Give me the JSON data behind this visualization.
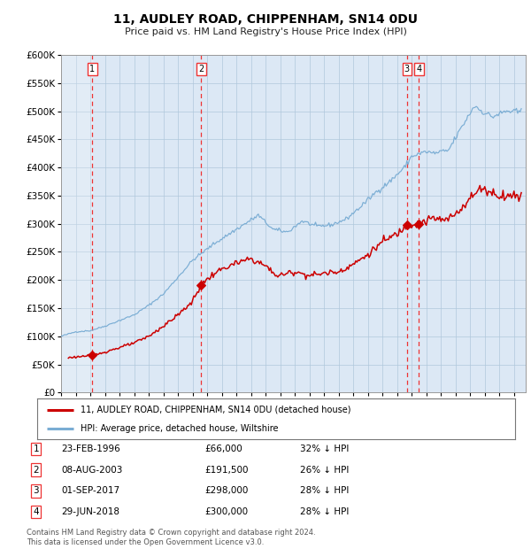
{
  "title_line1": "11, AUDLEY ROAD, CHIPPENHAM, SN14 0DU",
  "title_line2": "Price paid vs. HM Land Registry's House Price Index (HPI)",
  "purchases": [
    {
      "num": 1,
      "date_str": "23-FEB-1996",
      "date_x": 1996.14,
      "price": 66000,
      "pct": "32% ↓ HPI"
    },
    {
      "num": 2,
      "date_str": "08-AUG-2003",
      "date_x": 2003.6,
      "price": 191500,
      "pct": "26% ↓ HPI"
    },
    {
      "num": 3,
      "date_str": "01-SEP-2017",
      "date_x": 2017.67,
      "price": 298000,
      "pct": "28% ↓ HPI"
    },
    {
      "num": 4,
      "date_str": "29-JUN-2018",
      "date_x": 2018.49,
      "price": 300000,
      "pct": "28% ↓ HPI"
    }
  ],
  "legend_label_red": "11, AUDLEY ROAD, CHIPPENHAM, SN14 0DU (detached house)",
  "legend_label_blue": "HPI: Average price, detached house, Wiltshire",
  "footer_line1": "Contains HM Land Registry data © Crown copyright and database right 2024.",
  "footer_line2": "This data is licensed under the Open Government Licence v3.0.",
  "hpi_color": "#7aadd4",
  "price_color": "#cc0000",
  "marker_color": "#cc0000",
  "vline_color": "#ee3333",
  "bg_chart_color": "#dce8f5",
  "bg_outer_color": "#ffffff",
  "grid_color": "#b0c8dc",
  "ylim": [
    0,
    600000
  ],
  "xlim_start": 1994.0,
  "xlim_end": 2025.8,
  "hpi_waypoints": [
    [
      1994.0,
      100000
    ],
    [
      1995.0,
      108000
    ],
    [
      1996.0,
      110000
    ],
    [
      1997.0,
      118000
    ],
    [
      1998.0,
      128000
    ],
    [
      1999.0,
      138000
    ],
    [
      2000.0,
      155000
    ],
    [
      2001.0,
      175000
    ],
    [
      2002.0,
      205000
    ],
    [
      2003.0,
      235000
    ],
    [
      2004.5,
      265000
    ],
    [
      2006.0,
      290000
    ],
    [
      2007.5,
      315000
    ],
    [
      2008.5,
      290000
    ],
    [
      2009.5,
      285000
    ],
    [
      2010.5,
      305000
    ],
    [
      2011.5,
      295000
    ],
    [
      2012.5,
      298000
    ],
    [
      2013.5,
      308000
    ],
    [
      2014.5,
      330000
    ],
    [
      2015.5,
      355000
    ],
    [
      2016.5,
      375000
    ],
    [
      2017.5,
      400000
    ],
    [
      2018.0,
      420000
    ],
    [
      2019.0,
      428000
    ],
    [
      2019.5,
      425000
    ],
    [
      2020.5,
      430000
    ],
    [
      2021.5,
      475000
    ],
    [
      2022.3,
      510000
    ],
    [
      2022.8,
      500000
    ],
    [
      2023.5,
      490000
    ],
    [
      2024.5,
      500000
    ],
    [
      2025.5,
      498000
    ]
  ],
  "price_waypoints": [
    [
      1994.5,
      62000
    ],
    [
      1996.14,
      66000
    ],
    [
      1997.0,
      72000
    ],
    [
      1998.0,
      80000
    ],
    [
      1999.0,
      88000
    ],
    [
      2000.0,
      100000
    ],
    [
      2001.0,
      118000
    ],
    [
      2002.0,
      138000
    ],
    [
      2003.0,
      162000
    ],
    [
      2003.6,
      191500
    ],
    [
      2004.5,
      212000
    ],
    [
      2005.5,
      225000
    ],
    [
      2007.0,
      238000
    ],
    [
      2008.0,
      225000
    ],
    [
      2008.8,
      207000
    ],
    [
      2010.0,
      215000
    ],
    [
      2011.0,
      208000
    ],
    [
      2012.0,
      212000
    ],
    [
      2013.0,
      215000
    ],
    [
      2014.0,
      228000
    ],
    [
      2015.0,
      245000
    ],
    [
      2016.0,
      268000
    ],
    [
      2017.0,
      282000
    ],
    [
      2017.67,
      298000
    ],
    [
      2018.49,
      300000
    ],
    [
      2019.5,
      310000
    ],
    [
      2020.3,
      305000
    ],
    [
      2021.0,
      318000
    ],
    [
      2022.0,
      345000
    ],
    [
      2022.8,
      365000
    ],
    [
      2023.2,
      358000
    ],
    [
      2024.0,
      350000
    ],
    [
      2025.5,
      350000
    ]
  ]
}
